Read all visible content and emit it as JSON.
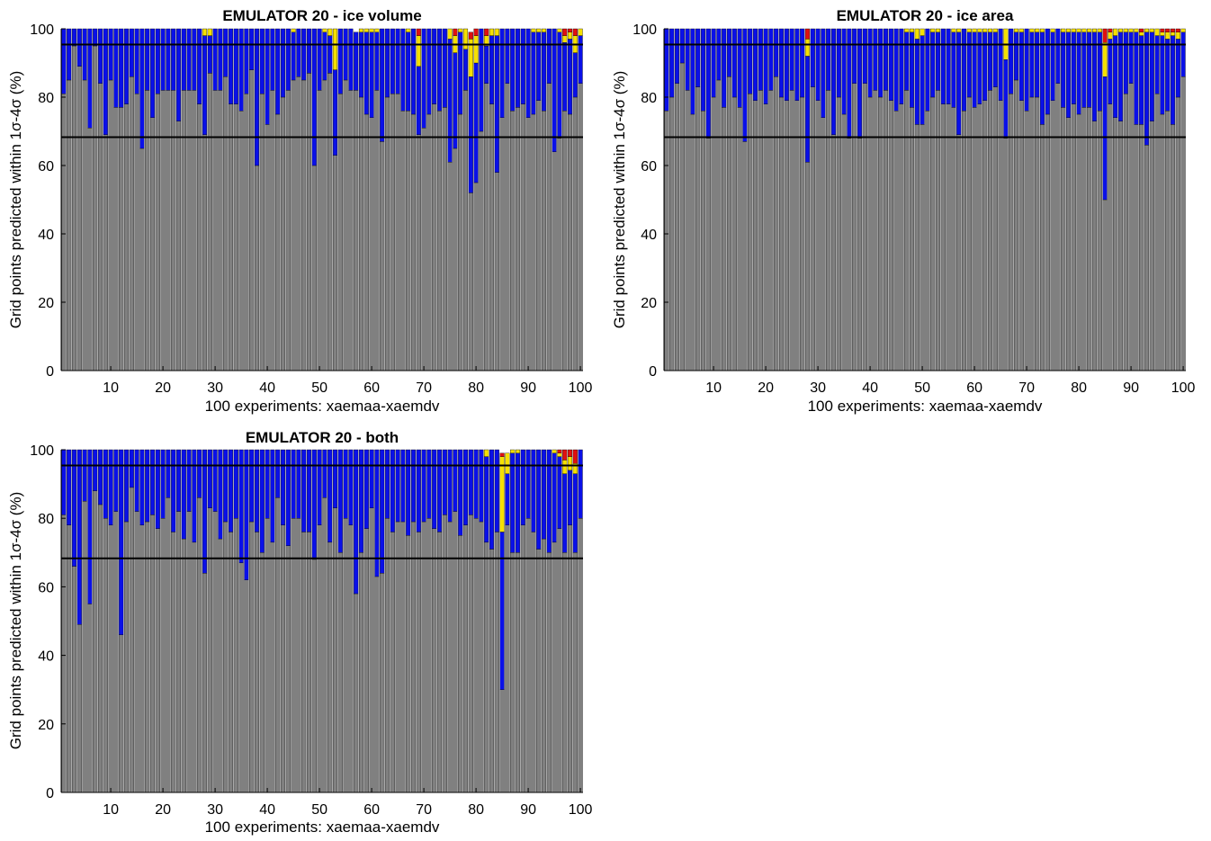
{
  "charts": [
    {
      "title": "EMULATOR 20 - ice volume",
      "ylabel": "Grid points predicted within 1σ-4σ (%)",
      "xlabel": "100 experiments: xaemaa-xaemdv"
    },
    {
      "title": "EMULATOR 20 - ice area",
      "ylabel": "Grid points predicted within 1σ-4σ (%)",
      "xlabel": "100 experiments: xaemaa-xaemdv"
    },
    {
      "title": "EMULATOR 20 - both",
      "ylabel": "Grid points predicted within 1σ-4σ (%)",
      "xlabel": "100 experiments: xaemaa-xaemdv"
    }
  ],
  "chart_data": [
    {
      "type": "bar",
      "stacked": true,
      "title": "EMULATOR 20 - ice volume",
      "xlabel": "100 experiments: xaemaa-xaemdv",
      "ylabel": "Grid points predicted within 1σ-4σ (%)",
      "xlim": [
        1,
        100
      ],
      "ylim": [
        0,
        100
      ],
      "xticks": [
        10,
        20,
        30,
        40,
        50,
        60,
        70,
        80,
        90,
        100
      ],
      "yticks": [
        0,
        20,
        40,
        60,
        80,
        100
      ],
      "reference_lines": [
        68.3,
        95.4
      ],
      "colors": [
        "#808080",
        "#0a10e8",
        "#f5e000",
        "#e01010"
      ],
      "one_sigma": [
        81,
        85,
        95,
        89,
        85,
        71,
        95,
        84,
        69,
        85,
        77,
        77,
        78,
        86,
        81,
        65,
        82,
        74,
        81,
        82,
        82,
        82,
        73,
        82,
        82,
        82,
        78,
        69,
        87,
        82,
        82,
        86,
        78,
        78,
        76,
        81,
        88,
        60,
        81,
        72,
        82,
        75,
        80,
        82,
        85,
        86,
        85,
        87,
        60,
        82,
        85,
        87,
        63,
        81,
        85,
        82,
        82,
        80,
        75,
        74,
        82,
        67,
        80,
        81,
        81,
        76,
        76,
        75,
        69,
        71,
        75,
        78,
        76,
        77,
        61,
        65,
        75,
        82,
        52,
        55,
        70,
        84,
        78,
        58,
        74,
        84,
        76,
        77,
        78,
        74,
        75,
        79,
        76,
        84,
        64,
        68,
        76,
        75,
        80,
        84
      ],
      "two_sigma": [
        19,
        15,
        5,
        11,
        15,
        29,
        5,
        16,
        31,
        15,
        23,
        23,
        22,
        14,
        19,
        35,
        18,
        26,
        19,
        18,
        18,
        18,
        27,
        18,
        18,
        18,
        22,
        29,
        11,
        18,
        18,
        14,
        22,
        22,
        24,
        19,
        12,
        40,
        19,
        28,
        18,
        25,
        20,
        18,
        14,
        14,
        15,
        13,
        40,
        18,
        14,
        11,
        25,
        19,
        15,
        18,
        17,
        19,
        24,
        25,
        17,
        33,
        20,
        19,
        19,
        24,
        23,
        25,
        20,
        29,
        25,
        22,
        24,
        23,
        36,
        28,
        24,
        12,
        34,
        35,
        30,
        11,
        20,
        40,
        26,
        16,
        24,
        23,
        22,
        26,
        24,
        20,
        23,
        16,
        36,
        31,
        20,
        22,
        13,
        14
      ],
      "three_sigma": [
        0,
        0,
        0,
        0,
        0,
        0,
        0,
        0,
        0,
        0,
        0,
        0,
        0,
        0,
        0,
        0,
        0,
        0,
        0,
        0,
        0,
        0,
        0,
        0,
        0,
        0,
        0,
        2,
        2,
        0,
        0,
        0,
        0,
        0,
        0,
        0,
        0,
        0,
        0,
        0,
        0,
        0,
        0,
        0,
        1,
        0,
        0,
        0,
        0,
        0,
        1,
        2,
        12,
        0,
        0,
        0,
        0,
        1,
        1,
        1,
        1,
        0,
        0,
        0,
        0,
        0,
        1,
        1,
        9,
        0,
        0,
        0,
        0,
        0,
        3,
        5,
        1,
        6,
        11,
        8,
        0,
        3,
        2,
        2,
        0,
        0,
        0,
        0,
        0,
        0,
        1,
        1,
        1,
        0,
        0,
        1,
        2,
        2,
        5,
        2
      ],
      "four_sigma": [
        0,
        0,
        0,
        0,
        0,
        0,
        0,
        0,
        0,
        0,
        0,
        0,
        0,
        0,
        0,
        0,
        0,
        0,
        0,
        0,
        0,
        0,
        0,
        0,
        0,
        0,
        0,
        0,
        0,
        0,
        0,
        0,
        0,
        0,
        0,
        0,
        0,
        0,
        0,
        0,
        0,
        0,
        0,
        0,
        0,
        0,
        0,
        0,
        0,
        0,
        0,
        0,
        0,
        0,
        0,
        0,
        0,
        0,
        0,
        0,
        0,
        0,
        0,
        0,
        0,
        0,
        0,
        0,
        2,
        0,
        0,
        0,
        0,
        0,
        2,
        2,
        1,
        2,
        2,
        2,
        0,
        2,
        0,
        0,
        0,
        0,
        0,
        0,
        0,
        0,
        0,
        0,
        0,
        0,
        0,
        0,
        2,
        1,
        2,
        0
      ]
    },
    {
      "type": "bar",
      "stacked": true,
      "title": "EMULATOR 20 - ice area",
      "xlabel": "100 experiments: xaemaa-xaemdv",
      "ylabel": "Grid points predicted within 1σ-4σ (%)",
      "xlim": [
        1,
        100
      ],
      "ylim": [
        0,
        100
      ],
      "xticks": [
        10,
        20,
        30,
        40,
        50,
        60,
        70,
        80,
        90,
        100
      ],
      "yticks": [
        0,
        20,
        40,
        60,
        80,
        100
      ],
      "reference_lines": [
        68.3,
        95.4
      ],
      "colors": [
        "#808080",
        "#0a10e8",
        "#f5e000",
        "#e01010"
      ],
      "one_sigma": [
        76,
        80,
        84,
        90,
        82,
        75,
        83,
        76,
        68,
        80,
        85,
        77,
        86,
        80,
        77,
        67,
        81,
        79,
        82,
        78,
        82,
        86,
        80,
        79,
        82,
        79,
        80,
        61,
        83,
        79,
        74,
        82,
        69,
        80,
        75,
        68,
        84,
        68,
        84,
        80,
        82,
        80,
        82,
        79,
        76,
        78,
        82,
        77,
        72,
        72,
        76,
        80,
        82,
        78,
        78,
        77,
        69,
        76,
        80,
        77,
        78,
        79,
        82,
        83,
        79,
        68,
        81,
        85,
        79,
        76,
        80,
        80,
        72,
        75,
        79,
        84,
        77,
        74,
        78,
        75,
        77,
        77,
        73,
        76,
        50,
        78,
        74,
        73,
        81,
        84,
        72,
        72,
        66,
        73,
        81,
        75,
        76,
        72,
        80,
        86
      ],
      "two_sigma": [
        24,
        20,
        16,
        10,
        18,
        25,
        17,
        24,
        32,
        20,
        15,
        23,
        14,
        20,
        23,
        33,
        19,
        21,
        18,
        22,
        18,
        14,
        20,
        21,
        18,
        21,
        20,
        31,
        17,
        21,
        26,
        18,
        31,
        20,
        25,
        32,
        16,
        32,
        16,
        20,
        18,
        20,
        18,
        21,
        24,
        22,
        17,
        22,
        25,
        26,
        24,
        19,
        17,
        22,
        22,
        22,
        30,
        24,
        19,
        22,
        21,
        20,
        17,
        16,
        21,
        23,
        19,
        14,
        20,
        24,
        19,
        19,
        27,
        25,
        20,
        16,
        22,
        25,
        21,
        24,
        22,
        22,
        26,
        23,
        36,
        19,
        24,
        26,
        18,
        15,
        27,
        26,
        33,
        26,
        17,
        23,
        21,
        26,
        17,
        13
      ],
      "three_sigma": [
        0,
        0,
        0,
        0,
        0,
        0,
        0,
        0,
        0,
        0,
        0,
        0,
        0,
        0,
        0,
        0,
        0,
        0,
        0,
        0,
        0,
        0,
        0,
        0,
        0,
        0,
        0,
        5,
        0,
        0,
        0,
        0,
        0,
        0,
        0,
        0,
        0,
        0,
        0,
        0,
        0,
        0,
        0,
        0,
        0,
        0,
        1,
        1,
        3,
        2,
        0,
        1,
        1,
        0,
        0,
        1,
        1,
        0,
        1,
        1,
        1,
        1,
        1,
        1,
        0,
        9,
        0,
        1,
        1,
        0,
        1,
        1,
        1,
        0,
        1,
        0,
        1,
        1,
        1,
        1,
        1,
        1,
        1,
        1,
        10,
        2,
        2,
        1,
        1,
        1,
        1,
        1,
        1,
        1,
        2,
        1,
        2,
        1,
        2,
        1
      ],
      "four_sigma": [
        0,
        0,
        0,
        0,
        0,
        0,
        0,
        0,
        0,
        0,
        0,
        0,
        0,
        0,
        0,
        0,
        0,
        0,
        0,
        0,
        0,
        0,
        0,
        0,
        0,
        0,
        0,
        4,
        0,
        0,
        0,
        0,
        0,
        0,
        0,
        0,
        0,
        0,
        0,
        0,
        0,
        0,
        0,
        0,
        0,
        0,
        0,
        0,
        0,
        0,
        0,
        0,
        0,
        0,
        0,
        0,
        0,
        0,
        0,
        0,
        0,
        0,
        0,
        0,
        0,
        0,
        0,
        0,
        0,
        0,
        0,
        0,
        0,
        0,
        0,
        0,
        0,
        0,
        0,
        0,
        0,
        0,
        0,
        0,
        4,
        1,
        0,
        0,
        0,
        0,
        0,
        1,
        0,
        0,
        0,
        1,
        1,
        1,
        1,
        0
      ]
    },
    {
      "type": "bar",
      "stacked": true,
      "title": "EMULATOR 20 - both",
      "xlabel": "100 experiments: xaemaa-xaemdv",
      "ylabel": "Grid points predicted within 1σ-4σ (%)",
      "xlim": [
        1,
        100
      ],
      "ylim": [
        0,
        100
      ],
      "xticks": [
        10,
        20,
        30,
        40,
        50,
        60,
        70,
        80,
        90,
        100
      ],
      "yticks": [
        0,
        20,
        40,
        60,
        80,
        100
      ],
      "reference_lines": [
        68.3,
        95.4
      ],
      "colors": [
        "#808080",
        "#0a10e8",
        "#f5e000",
        "#e01010"
      ],
      "one_sigma": [
        81,
        78,
        66,
        49,
        85,
        55,
        88,
        84,
        80,
        78,
        82,
        46,
        79,
        89,
        82,
        78,
        79,
        81,
        77,
        80,
        86,
        76,
        82,
        74,
        82,
        73,
        86,
        64,
        83,
        82,
        74,
        79,
        76,
        80,
        67,
        62,
        79,
        76,
        70,
        80,
        73,
        86,
        78,
        72,
        80,
        80,
        76,
        76,
        68,
        78,
        86,
        73,
        83,
        70,
        80,
        78,
        58,
        70,
        77,
        83,
        63,
        64,
        80,
        76,
        79,
        79,
        75,
        79,
        76,
        79,
        80,
        77,
        76,
        81,
        79,
        82,
        75,
        78,
        81,
        80,
        79,
        73,
        71,
        76,
        30,
        78,
        70,
        70,
        78,
        80,
        76,
        71,
        74,
        70,
        73,
        77,
        70,
        78,
        70,
        80
      ],
      "two_sigma": [
        19,
        22,
        34,
        51,
        15,
        45,
        12,
        16,
        20,
        22,
        18,
        54,
        21,
        11,
        18,
        22,
        21,
        19,
        23,
        20,
        14,
        24,
        18,
        26,
        18,
        27,
        14,
        36,
        17,
        18,
        26,
        21,
        24,
        20,
        33,
        38,
        21,
        24,
        30,
        20,
        27,
        14,
        22,
        28,
        20,
        20,
        24,
        24,
        32,
        22,
        14,
        27,
        17,
        30,
        20,
        22,
        42,
        30,
        23,
        17,
        37,
        36,
        20,
        24,
        21,
        21,
        25,
        21,
        24,
        21,
        20,
        23,
        24,
        19,
        21,
        18,
        25,
        22,
        19,
        20,
        21,
        25,
        29,
        24,
        46,
        15,
        29,
        29,
        22,
        20,
        24,
        29,
        26,
        30,
        26,
        21,
        23,
        16,
        23,
        20
      ],
      "three_sigma": [
        0,
        0,
        0,
        2,
        0,
        0,
        0,
        0,
        0,
        0,
        0,
        0,
        0,
        0,
        0,
        0,
        0,
        0,
        0,
        0,
        0,
        0,
        0,
        0,
        0,
        0,
        0,
        0,
        0,
        0,
        0,
        0,
        0,
        0,
        0,
        0,
        0,
        0,
        0,
        0,
        0,
        0,
        0,
        0,
        0,
        0,
        0,
        0,
        0,
        0,
        0,
        0,
        0,
        0,
        0,
        0,
        1,
        1,
        0,
        0,
        0,
        0,
        0,
        0,
        0,
        0,
        0,
        0,
        0,
        0,
        0,
        0,
        0,
        0,
        0,
        0,
        0,
        0,
        0,
        0,
        0,
        2,
        0,
        0,
        22,
        6,
        1,
        1,
        0,
        0,
        0,
        0,
        0,
        0,
        1,
        1,
        4,
        4,
        3,
        0
      ],
      "four_sigma": [
        0,
        0,
        0,
        0,
        0,
        0,
        0,
        0,
        0,
        0,
        0,
        0,
        0,
        0,
        0,
        0,
        0,
        0,
        0,
        0,
        0,
        0,
        0,
        0,
        0,
        0,
        0,
        0,
        0,
        0,
        0,
        0,
        0,
        0,
        0,
        0,
        0,
        0,
        0,
        0,
        0,
        0,
        0,
        0,
        0,
        0,
        0,
        0,
        0,
        0,
        0,
        0,
        0,
        0,
        0,
        0,
        0,
        0,
        0,
        0,
        0,
        0,
        0,
        0,
        0,
        0,
        0,
        0,
        0,
        0,
        0,
        0,
        0,
        0,
        0,
        0,
        0,
        0,
        0,
        0,
        0,
        0,
        0,
        0,
        1,
        0,
        0,
        0,
        0,
        0,
        0,
        0,
        0,
        0,
        0,
        1,
        3,
        2,
        4,
        0
      ]
    }
  ]
}
